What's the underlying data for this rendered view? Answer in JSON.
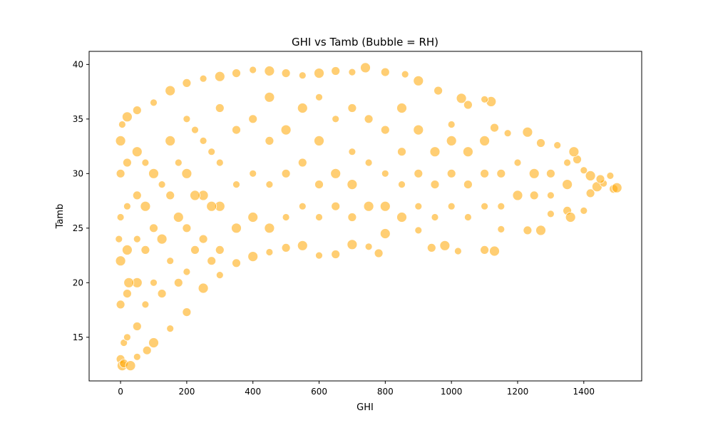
{
  "chart_data": {
    "type": "scatter",
    "title": "GHI vs Tamb (Bubble = RH)",
    "xlabel": "GHI",
    "ylabel": "Tamb",
    "xlim": [
      -95,
      1575
    ],
    "ylim": [
      11,
      41.2
    ],
    "xticks": [
      0,
      200,
      400,
      600,
      800,
      1000,
      1200,
      1400
    ],
    "yticks": [
      15,
      20,
      25,
      30,
      35,
      40
    ],
    "grid": false,
    "legend": "none",
    "marker_color": "#FFA500",
    "marker_edge": "#ffffff",
    "marker_alpha": 0.55,
    "size_encoding": "RH",
    "sample_points": [
      [
        -5,
        24
      ],
      [
        0,
        13
      ],
      [
        5,
        12.4
      ],
      [
        10,
        14.5
      ],
      [
        0,
        18
      ],
      [
        0,
        22
      ],
      [
        0,
        26
      ],
      [
        0,
        30
      ],
      [
        0,
        33
      ],
      [
        5,
        34.5
      ],
      [
        10,
        12.6
      ],
      [
        30,
        12.4
      ],
      [
        50,
        13.2
      ],
      [
        80,
        13.8
      ],
      [
        100,
        14.5
      ],
      [
        150,
        15.8
      ],
      [
        200,
        17.3
      ],
      [
        250,
        19.5
      ],
      [
        300,
        20.7
      ],
      [
        350,
        21.8
      ],
      [
        400,
        22.4
      ],
      [
        450,
        22.8
      ],
      [
        500,
        23.2
      ],
      [
        550,
        23.4
      ],
      [
        600,
        22.5
      ],
      [
        650,
        22.6
      ],
      [
        700,
        23.5
      ],
      [
        750,
        23.3
      ],
      [
        780,
        22.7
      ],
      [
        800,
        24.5
      ],
      [
        900,
        24.8
      ],
      [
        940,
        23.2
      ],
      [
        980,
        23.4
      ],
      [
        1020,
        22.9
      ],
      [
        1100,
        23
      ],
      [
        1130,
        22.9
      ],
      [
        1150,
        24.9
      ],
      [
        1230,
        24.8
      ],
      [
        1270,
        24.8
      ],
      [
        1300,
        26.3
      ],
      [
        1350,
        26.6
      ],
      [
        1360,
        26
      ],
      [
        1400,
        26.6
      ],
      [
        1420,
        28.2
      ],
      [
        1440,
        28.8
      ],
      [
        1460,
        29.1
      ],
      [
        1490,
        28.6
      ],
      [
        1500,
        28.7
      ],
      [
        1480,
        29.8
      ],
      [
        1450,
        29.5
      ],
      [
        1420,
        29.8
      ],
      [
        1400,
        30.3
      ],
      [
        1380,
        31.3
      ],
      [
        1370,
        32
      ],
      [
        1320,
        32.6
      ],
      [
        1270,
        32.8
      ],
      [
        1230,
        33.8
      ],
      [
        1170,
        33.7
      ],
      [
        1130,
        34.2
      ],
      [
        1120,
        36.6
      ],
      [
        1100,
        36.8
      ],
      [
        1050,
        36.3
      ],
      [
        1030,
        36.9
      ],
      [
        1000,
        34.5
      ],
      [
        960,
        37.6
      ],
      [
        900,
        38.5
      ],
      [
        860,
        39.1
      ],
      [
        800,
        39.3
      ],
      [
        740,
        39.7
      ],
      [
        700,
        39.3
      ],
      [
        650,
        39.4
      ],
      [
        600,
        39.2
      ],
      [
        550,
        39.0
      ],
      [
        500,
        39.2
      ],
      [
        450,
        39.4
      ],
      [
        400,
        39.5
      ],
      [
        350,
        39.2
      ],
      [
        300,
        38.9
      ],
      [
        250,
        38.7
      ],
      [
        200,
        38.3
      ],
      [
        150,
        37.6
      ],
      [
        100,
        36.5
      ],
      [
        50,
        35.8
      ],
      [
        20,
        35.2
      ],
      [
        100,
        20
      ],
      [
        100,
        25
      ],
      [
        100,
        30
      ],
      [
        150,
        22
      ],
      [
        150,
        28
      ],
      [
        150,
        33
      ],
      [
        200,
        21
      ],
      [
        200,
        25
      ],
      [
        200,
        30
      ],
      [
        200,
        35
      ],
      [
        250,
        24
      ],
      [
        250,
        28
      ],
      [
        250,
        33
      ],
      [
        300,
        23
      ],
      [
        300,
        27
      ],
      [
        300,
        31
      ],
      [
        300,
        36
      ],
      [
        350,
        25
      ],
      [
        350,
        29
      ],
      [
        350,
        34
      ],
      [
        400,
        26
      ],
      [
        400,
        30
      ],
      [
        400,
        35
      ],
      [
        450,
        25
      ],
      [
        450,
        29
      ],
      [
        450,
        33
      ],
      [
        450,
        37
      ],
      [
        500,
        26
      ],
      [
        500,
        30
      ],
      [
        500,
        34
      ],
      [
        550,
        27
      ],
      [
        550,
        31
      ],
      [
        550,
        36
      ],
      [
        600,
        26
      ],
      [
        600,
        29
      ],
      [
        600,
        33
      ],
      [
        600,
        37
      ],
      [
        650,
        27
      ],
      [
        650,
        30
      ],
      [
        650,
        35
      ],
      [
        700,
        26
      ],
      [
        700,
        29
      ],
      [
        700,
        32
      ],
      [
        700,
        36
      ],
      [
        750,
        27
      ],
      [
        750,
        31
      ],
      [
        750,
        35
      ],
      [
        800,
        27
      ],
      [
        800,
        30
      ],
      [
        800,
        34
      ],
      [
        850,
        26
      ],
      [
        850,
        29
      ],
      [
        850,
        32
      ],
      [
        850,
        36
      ],
      [
        900,
        27
      ],
      [
        900,
        30
      ],
      [
        900,
        34
      ],
      [
        950,
        26
      ],
      [
        950,
        29
      ],
      [
        950,
        32
      ],
      [
        1000,
        27
      ],
      [
        1000,
        30
      ],
      [
        1000,
        33
      ],
      [
        1050,
        26
      ],
      [
        1050,
        29
      ],
      [
        1050,
        32
      ],
      [
        1100,
        27
      ],
      [
        1100,
        30
      ],
      [
        1100,
        33
      ],
      [
        1150,
        27
      ],
      [
        1150,
        30
      ],
      [
        1200,
        28
      ],
      [
        1200,
        31
      ],
      [
        1250,
        28
      ],
      [
        1250,
        30
      ],
      [
        1300,
        28
      ],
      [
        1300,
        30
      ],
      [
        1350,
        29
      ],
      [
        1350,
        31
      ],
      [
        50,
        16
      ],
      [
        50,
        20
      ],
      [
        50,
        24
      ],
      [
        50,
        28
      ],
      [
        50,
        32
      ],
      [
        20,
        15
      ],
      [
        20,
        19
      ],
      [
        20,
        23
      ],
      [
        20,
        27
      ],
      [
        20,
        31
      ],
      [
        25,
        20
      ],
      [
        75,
        18
      ],
      [
        75,
        23
      ],
      [
        75,
        27
      ],
      [
        75,
        31
      ],
      [
        125,
        19
      ],
      [
        125,
        24
      ],
      [
        125,
        29
      ],
      [
        175,
        20
      ],
      [
        175,
        26
      ],
      [
        175,
        31
      ],
      [
        225,
        23
      ],
      [
        225,
        28
      ],
      [
        225,
        34
      ],
      [
        275,
        22
      ],
      [
        275,
        27
      ],
      [
        275,
        32
      ]
    ]
  }
}
